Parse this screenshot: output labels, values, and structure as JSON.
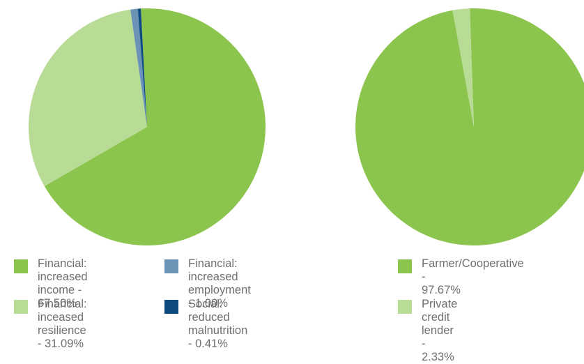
{
  "chart_data": [
    {
      "type": "pie",
      "labels": [
        "Financial: increased\nincome - 67.50%",
        "Financial: inceased\nresilience - 31.09%",
        "Financial: increased\nemployment - 1.00%",
        "Social: reduced\nmalnutrition - 0.41%"
      ],
      "values": [
        67.5,
        31.09,
        1.0,
        0.41
      ],
      "colors": [
        "#8cc54d",
        "#b8dc95",
        "#6a93b5",
        "#0e4a80"
      ],
      "legend": "bottom"
    },
    {
      "type": "pie",
      "labels": [
        "Farmer/Cooperative -\n97.67%",
        "Private credit lender -\n2.33%"
      ],
      "values": [
        97.67,
        2.33
      ],
      "colors": [
        "#8cc54d",
        "#b8dc95"
      ],
      "legend": "bottom"
    }
  ]
}
